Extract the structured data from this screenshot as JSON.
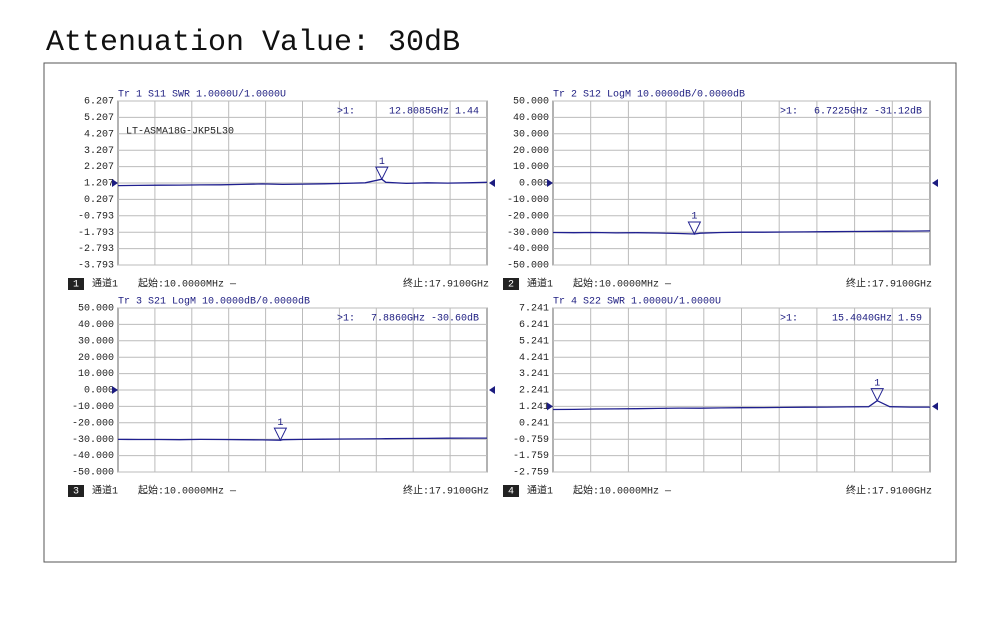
{
  "title": "Attenuation Value: 30dB",
  "chart_data": [
    {
      "type": "line",
      "index": "1",
      "title": "Tr 1  S11 SWR 1.0000U/1.0000U",
      "annotation": "LT-ASMA18G-JKP5L30",
      "readout_prefix": ">1:",
      "readout": "12.8085GHz 1.44",
      "marker": {
        "number": "1",
        "x": 12.8085,
        "y": 1.44
      },
      "reference": 1.207,
      "channel": "通道1",
      "start": "起始:10.0000MHz —",
      "stop": "终止:17.9100GHz",
      "color": "#1f1f8f",
      "xlim": [
        0.01,
        17.91
      ],
      "ylim": [
        -3.793,
        6.207
      ],
      "yticks": [
        6.207,
        5.207,
        4.207,
        3.207,
        2.207,
        1.207,
        0.207,
        -0.793,
        -1.793,
        -2.793,
        -3.793
      ],
      "x": [
        0.01,
        1,
        2,
        3,
        4,
        5,
        6,
        7,
        8,
        9,
        10,
        11,
        12,
        12.8085,
        13,
        14,
        15,
        16,
        17,
        17.91
      ],
      "values": [
        1.05,
        1.06,
        1.07,
        1.08,
        1.09,
        1.1,
        1.12,
        1.15,
        1.12,
        1.14,
        1.16,
        1.18,
        1.22,
        1.44,
        1.25,
        1.18,
        1.22,
        1.2,
        1.22,
        1.25
      ]
    },
    {
      "type": "line",
      "index": "2",
      "title": "Tr 2  S12 LogM 10.0000dB/0.0000dB",
      "readout_prefix": ">1:",
      "readout": "6.7225GHz -31.12dB",
      "marker": {
        "number": "1",
        "x": 6.7225,
        "y": -31.12
      },
      "reference": 0,
      "channel": "通道1",
      "start": "起始:10.0000MHz —",
      "stop": "终止:17.9100GHz",
      "color": "#1f1f8f",
      "xlim": [
        0.01,
        17.91
      ],
      "ylim": [
        -50,
        50
      ],
      "yticks": [
        {
          "value": 50,
          "label": "50.000"
        },
        {
          "value": 40,
          "label": "40.000"
        },
        {
          "value": 30,
          "label": "30.000"
        },
        {
          "value": 20,
          "label": "20.000"
        },
        {
          "value": 10,
          "label": "10.000"
        },
        {
          "value": 0,
          "label": "0.000"
        },
        {
          "value": -10,
          "label": "-10.000"
        },
        {
          "value": -20,
          "label": "-20.000"
        },
        {
          "value": -30,
          "label": "-30.000"
        },
        {
          "value": -40,
          "label": "-40.000"
        },
        {
          "value": -50,
          "label": "-50.000"
        }
      ],
      "x": [
        0.01,
        1,
        2,
        3,
        4,
        5,
        6,
        6.7225,
        7,
        8,
        9,
        10,
        11,
        12,
        13,
        14,
        15,
        16,
        17,
        17.91
      ],
      "values": [
        -30.2,
        -30.3,
        -30.2,
        -30.4,
        -30.3,
        -30.5,
        -30.8,
        -31.12,
        -30.6,
        -30.2,
        -30.0,
        -30.0,
        -29.9,
        -29.8,
        -29.7,
        -29.6,
        -29.5,
        -29.4,
        -29.3,
        -29.2
      ]
    },
    {
      "type": "line",
      "index": "3",
      "title": "Tr 3  S21 LogM 10.0000dB/0.0000dB",
      "readout_prefix": ">1:",
      "readout": "7.8860GHz -30.60dB",
      "marker": {
        "number": "1",
        "x": 7.886,
        "y": -30.6
      },
      "reference": 0,
      "channel": "通道1",
      "start": "起始:10.0000MHz —",
      "stop": "终止:17.9100GHz",
      "color": "#1f1f8f",
      "xlim": [
        0.01,
        17.91
      ],
      "ylim": [
        -50,
        50
      ],
      "yticks": [
        {
          "value": 50,
          "label": "50.000"
        },
        {
          "value": 40,
          "label": "40.000"
        },
        {
          "value": 30,
          "label": "30.000"
        },
        {
          "value": 20,
          "label": "20.000"
        },
        {
          "value": 10,
          "label": "10.000"
        },
        {
          "value": 0,
          "label": "0.000"
        },
        {
          "value": -10,
          "label": "-10.000"
        },
        {
          "value": -20,
          "label": "-20.000"
        },
        {
          "value": -30,
          "label": "-30.000"
        },
        {
          "value": -40,
          "label": "-40.000"
        },
        {
          "value": -50,
          "label": "-50.000"
        }
      ],
      "x": [
        0.01,
        1,
        2,
        3,
        4,
        5,
        6,
        7,
        7.886,
        8,
        9,
        10,
        11,
        12,
        13,
        14,
        15,
        16,
        17,
        17.91
      ],
      "values": [
        -30.1,
        -30.2,
        -30.2,
        -30.3,
        -30.1,
        -30.2,
        -30.3,
        -30.4,
        -30.6,
        -30.3,
        -30.1,
        -30.0,
        -29.9,
        -29.8,
        -29.7,
        -29.6,
        -29.5,
        -29.4,
        -29.3,
        -29.3
      ]
    },
    {
      "type": "line",
      "index": "4",
      "title": "Tr 4  S22 SWR 1.0000U/1.0000U",
      "readout_prefix": ">1:",
      "readout": "15.4040GHz 1.59",
      "marker": {
        "number": "1",
        "x": 15.404,
        "y": 1.59
      },
      "reference": 1.241,
      "channel": "通道1",
      "start": "起始:10.0000MHz —",
      "stop": "终止:17.9100GHz",
      "color": "#1f1f8f",
      "xlim": [
        0.01,
        17.91
      ],
      "ylim": [
        -2.759,
        7.241
      ],
      "yticks": [
        7.241,
        6.241,
        5.241,
        4.241,
        3.241,
        2.241,
        1.241,
        0.241,
        -0.759,
        -1.759,
        -2.759
      ],
      "x": [
        0.01,
        1,
        2,
        3,
        4,
        5,
        6,
        7,
        8,
        9,
        10,
        11,
        12,
        13,
        14,
        15,
        15.404,
        16,
        17,
        17.91
      ],
      "values": [
        1.05,
        1.06,
        1.08,
        1.09,
        1.1,
        1.12,
        1.14,
        1.13,
        1.15,
        1.16,
        1.17,
        1.18,
        1.19,
        1.2,
        1.21,
        1.22,
        1.59,
        1.22,
        1.2,
        1.2
      ]
    }
  ]
}
